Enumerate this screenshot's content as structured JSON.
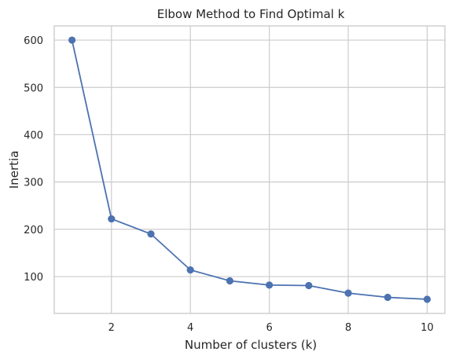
{
  "chart_data": {
    "type": "line",
    "title": "Elbow Method to Find Optimal k",
    "xlabel": "Number of clusters (k)",
    "ylabel": "Inertia",
    "x": [
      1,
      2,
      3,
      4,
      5,
      6,
      7,
      8,
      9,
      10
    ],
    "series": [
      {
        "values": [
          600,
          222,
          190,
          114,
          91,
          82,
          81,
          65,
          56,
          52
        ],
        "color": "#4c72b0",
        "marker": "circle"
      }
    ],
    "xlim": [
      0.55,
      10.45
    ],
    "ylim": [
      22,
      630
    ],
    "xticks": [
      2,
      4,
      6,
      8,
      10
    ],
    "yticks": [
      100,
      200,
      300,
      400,
      500,
      600
    ],
    "grid": true,
    "legend": "none"
  }
}
